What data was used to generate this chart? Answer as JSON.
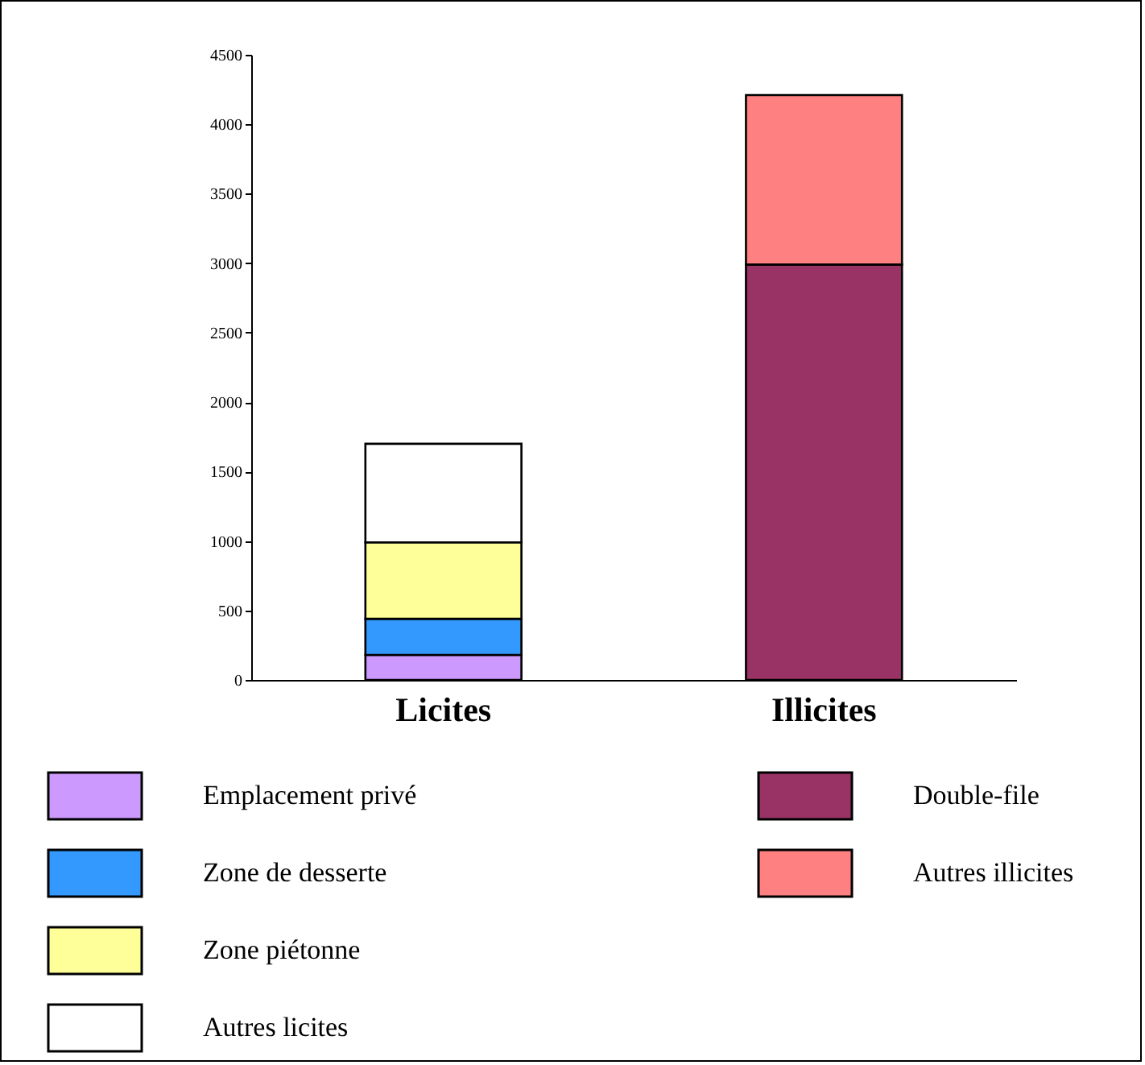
{
  "chart_data": {
    "type": "bar",
    "stacked": true,
    "categories": [
      "Licites",
      "Illicites"
    ],
    "series": [
      {
        "name": "Emplacement privé",
        "color": "#cc99ff",
        "values": [
          180,
          null
        ]
      },
      {
        "name": "Zone de desserte",
        "color": "#3399ff",
        "values": [
          260,
          null
        ]
      },
      {
        "name": "Zone piétonne",
        "color": "#ffff99",
        "values": [
          550,
          null
        ]
      },
      {
        "name": "Autres licites",
        "color": "#ffffff",
        "values": [
          710,
          null
        ]
      },
      {
        "name": "Double-file",
        "color": "#993366",
        "values": [
          null,
          2990
        ]
      },
      {
        "name": "Autres illicites",
        "color": "#ff8080",
        "values": [
          null,
          1220
        ]
      }
    ],
    "ylim": [
      0,
      4500
    ],
    "yticks": [
      0,
      500,
      1000,
      1500,
      2000,
      2500,
      3000,
      3500,
      4000,
      4500
    ],
    "grid": false,
    "legend": "bottom"
  }
}
